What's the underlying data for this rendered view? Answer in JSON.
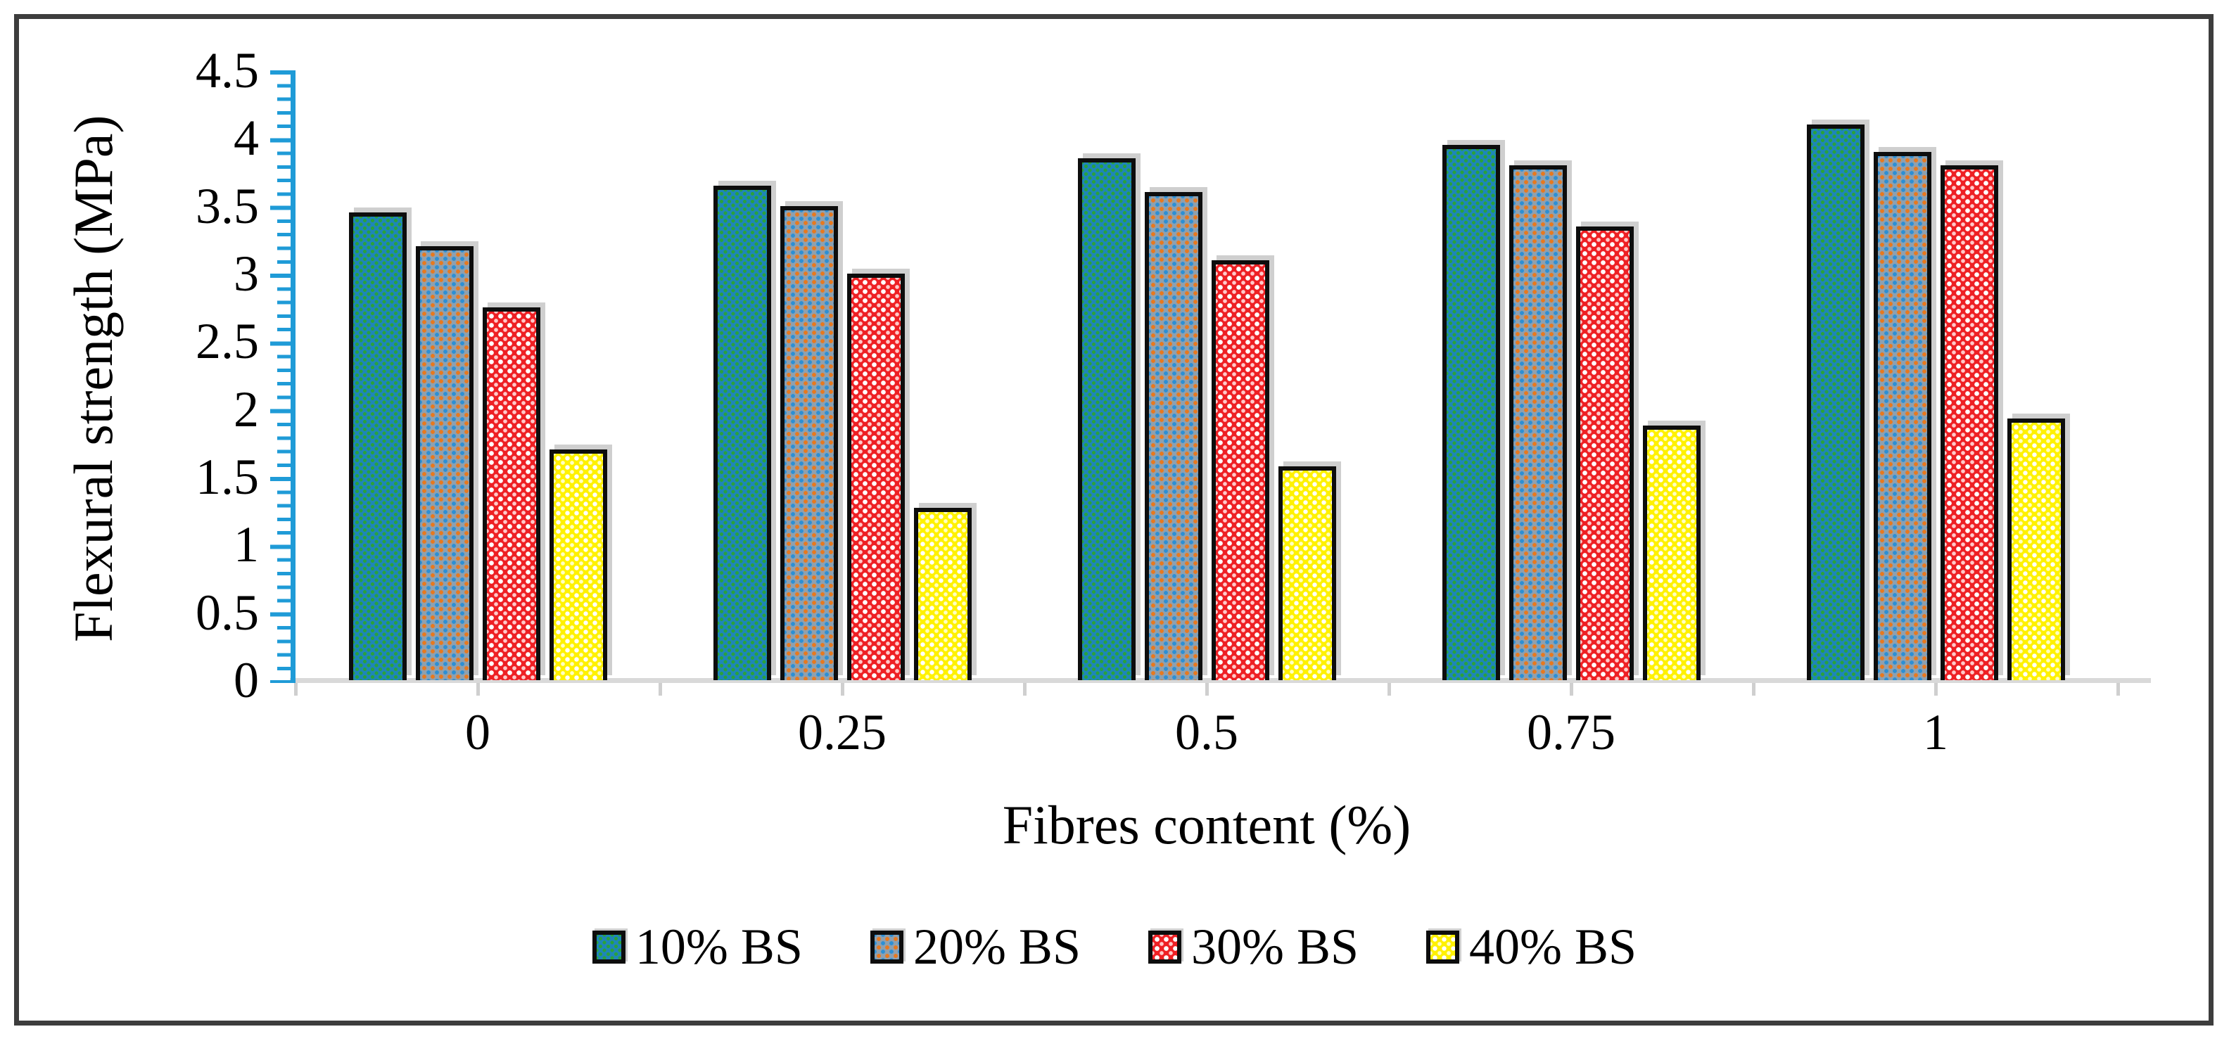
{
  "chart_data": {
    "type": "bar",
    "title": "",
    "xlabel": "Fibres content (%)",
    "ylabel": "Flexural strength (MPa)",
    "categories": [
      "0",
      "0.25",
      "0.5",
      "0.75",
      "1"
    ],
    "series": [
      {
        "name": "10% BS",
        "values": [
          3.45,
          3.65,
          3.85,
          3.95,
          4.1
        ],
        "color": "#1e86b8",
        "pattern": "teal-green-dots"
      },
      {
        "name": "20% BS",
        "values": [
          3.2,
          3.5,
          3.6,
          3.8,
          3.9
        ],
        "color": "#8fa0ae",
        "pattern": "gray-orange-blue-dots"
      },
      {
        "name": "30% BS",
        "values": [
          2.75,
          3.0,
          3.1,
          3.35,
          3.8
        ],
        "color": "#ee2024",
        "pattern": "red-white-dots"
      },
      {
        "name": "40% BS",
        "values": [
          1.7,
          1.27,
          1.58,
          1.88,
          1.93
        ],
        "color": "#fff100",
        "pattern": "yellow-white-dots"
      }
    ],
    "ylim": [
      0,
      4.5
    ],
    "y_ticks": [
      "0",
      "0.5",
      "1",
      "1.5",
      "2",
      "2.5",
      "3",
      "3.5",
      "4",
      "4.5"
    ],
    "x_ticks": [
      "0",
      "0.25",
      "0.5",
      "0.75",
      "1"
    ],
    "grid": false,
    "legend_position": "bottom",
    "axis_colors": {
      "y_axis": "#1f9bd7",
      "x_axis": "#d9d9d9",
      "text": "#000000",
      "frame": "#3d3d3d"
    }
  }
}
